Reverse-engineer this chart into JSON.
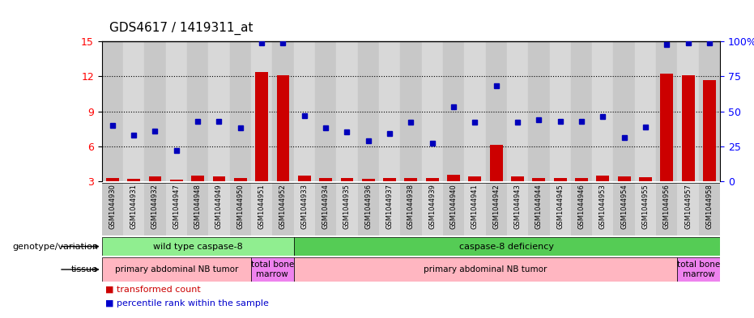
{
  "title": "GDS4617 / 1419311_at",
  "samples": [
    "GSM1044930",
    "GSM1044931",
    "GSM1044932",
    "GSM1044947",
    "GSM1044948",
    "GSM1044949",
    "GSM1044950",
    "GSM1044951",
    "GSM1044952",
    "GSM1044933",
    "GSM1044934",
    "GSM1044935",
    "GSM1044936",
    "GSM1044937",
    "GSM1044938",
    "GSM1044939",
    "GSM1044940",
    "GSM1044941",
    "GSM1044942",
    "GSM1044943",
    "GSM1044944",
    "GSM1044945",
    "GSM1044946",
    "GSM1044953",
    "GSM1044954",
    "GSM1044955",
    "GSM1044956",
    "GSM1044957",
    "GSM1044958"
  ],
  "red_values": [
    3.3,
    3.2,
    3.4,
    3.15,
    3.5,
    3.45,
    3.3,
    12.4,
    12.1,
    3.5,
    3.3,
    3.3,
    3.2,
    3.3,
    3.3,
    3.3,
    3.55,
    3.4,
    6.1,
    3.4,
    3.3,
    3.3,
    3.3,
    3.5,
    3.45,
    3.35,
    12.2,
    12.1,
    11.7
  ],
  "blue_values_pct": [
    40,
    33,
    36,
    22,
    43,
    43,
    38,
    99,
    99,
    47,
    38,
    35,
    29,
    34,
    42,
    27,
    53,
    42,
    68,
    42,
    44,
    43,
    43,
    46,
    31,
    39,
    98,
    99,
    99
  ],
  "ylim_left": [
    3,
    15
  ],
  "yticks_left": [
    3,
    6,
    9,
    12,
    15
  ],
  "ylim_right": [
    0,
    100
  ],
  "yticks_right": [
    0,
    25,
    50,
    75,
    100
  ],
  "right_tick_labels": [
    "0",
    "25",
    "50",
    "75",
    "100%"
  ],
  "genotype_groups": [
    {
      "label": "wild type caspase-8",
      "start": 0,
      "end": 9,
      "color": "#90EE90"
    },
    {
      "label": "caspase-8 deficiency",
      "start": 9,
      "end": 29,
      "color": "#55CC55"
    }
  ],
  "tissue_groups": [
    {
      "label": "primary abdominal NB tumor",
      "start": 0,
      "end": 7,
      "color": "#FFB6C1"
    },
    {
      "label": "total bone\nmarrow",
      "start": 7,
      "end": 9,
      "color": "#EE82EE"
    },
    {
      "label": "primary abdominal NB tumor",
      "start": 9,
      "end": 27,
      "color": "#FFB6C1"
    },
    {
      "label": "total bone\nmarrow",
      "start": 27,
      "end": 29,
      "color": "#EE82EE"
    }
  ],
  "legend_items": [
    {
      "color": "#CC0000",
      "label": "transformed count"
    },
    {
      "color": "#0000CC",
      "label": "percentile rank within the sample"
    }
  ],
  "bar_color": "#CC0000",
  "dot_color": "#0000BB",
  "bar_width": 0.6,
  "col_colors": [
    "#C8C8C8",
    "#D8D8D8"
  ]
}
